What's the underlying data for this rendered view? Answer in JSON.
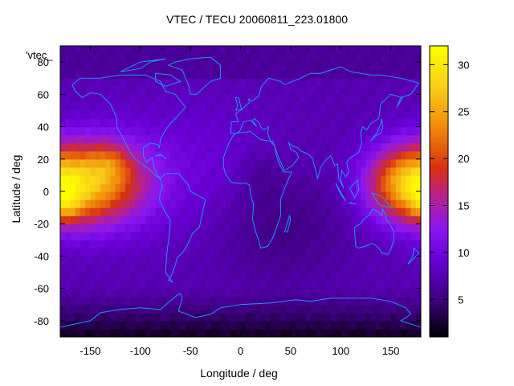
{
  "chart_data": {
    "type": "heatmap",
    "title": "VTEC / TECU 20060811_223.01800",
    "xlabel": "Longitude / deg",
    "ylabel": "Latitude / deg",
    "key_label": "'vtec_",
    "xlim": [
      -180,
      180
    ],
    "ylim": [
      -90,
      90
    ],
    "x_ticks": [
      -150,
      -100,
      -50,
      0,
      50,
      100,
      150
    ],
    "y_ticks": [
      -80,
      -60,
      -40,
      -20,
      0,
      20,
      40,
      60,
      80
    ],
    "colorbar": {
      "range": [
        1,
        32
      ],
      "ticks": [
        5,
        10,
        15,
        20,
        25,
        30
      ],
      "palette": [
        "#000000",
        "#3a0078",
        "#6a00d8",
        "#8a16f0",
        "#b0209a",
        "#d83012",
        "#f08a0a",
        "#f8d018",
        "#ffff00"
      ]
    },
    "grid": false,
    "legend": "none",
    "overlay": "coastlines",
    "grid_step_deg": 5,
    "description_ranges": {
      "background": 7,
      "max_value": 30,
      "min_value": 1.5
    }
  }
}
